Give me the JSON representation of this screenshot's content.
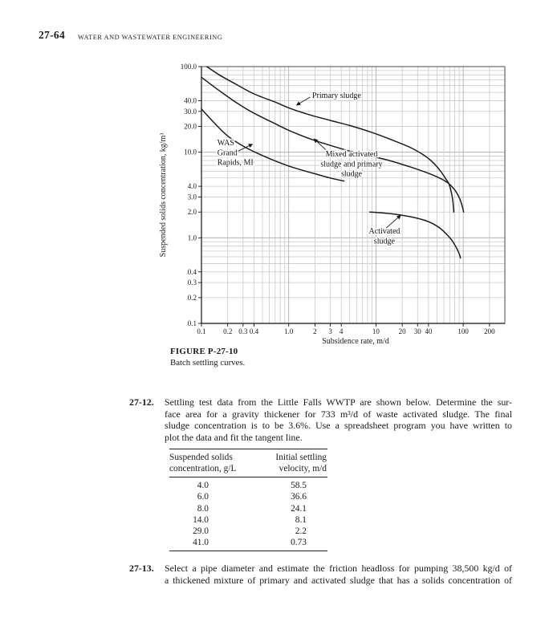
{
  "page": {
    "number": "27-64",
    "running_head": "WATER AND WASTEWATER ENGINEERING"
  },
  "figure": {
    "caption_label": "FIGURE P-27-10",
    "caption_text": "Batch settling curves."
  },
  "chart_data": {
    "type": "line",
    "title": "",
    "xlabel": "Subsidence rate, m/d",
    "ylabel": "Suspended solids concentration, kg/m³",
    "xscale": "log",
    "yscale": "log",
    "xlim": [
      0.1,
      300
    ],
    "ylim": [
      0.1,
      100
    ],
    "grid": "all log-minor gridlines, light gray",
    "legend": "none (inline curve labels with arrows)",
    "xticks": [
      [
        0.1,
        "0.1"
      ],
      [
        0.2,
        "0.2"
      ],
      [
        0.3,
        "0.3"
      ],
      [
        0.4,
        "0.4"
      ],
      [
        1,
        "1.0"
      ],
      [
        2,
        "2"
      ],
      [
        3,
        "3"
      ],
      [
        4,
        "4"
      ],
      [
        10,
        "10"
      ],
      [
        20,
        "20"
      ],
      [
        30,
        "30"
      ],
      [
        40,
        "40"
      ],
      [
        100,
        "100"
      ],
      [
        200,
        "200"
      ]
    ],
    "yticks": [
      [
        100,
        "100.0"
      ],
      [
        40,
        "40.0"
      ],
      [
        30,
        "30.0"
      ],
      [
        20,
        "20.0"
      ],
      [
        10,
        "10.0"
      ],
      [
        4,
        "4.0"
      ],
      [
        3,
        "3.0"
      ],
      [
        2,
        "2.0"
      ],
      [
        1,
        "1.0"
      ],
      [
        0.4,
        "0.4"
      ],
      [
        0.3,
        "0.3"
      ],
      [
        0.2,
        "0.2"
      ],
      [
        0.1,
        "0.1"
      ]
    ],
    "series": [
      {
        "name": "Primary sludge",
        "points": [
          [
            0.115,
            100
          ],
          [
            0.16,
            80
          ],
          [
            0.25,
            62
          ],
          [
            0.4,
            48
          ],
          [
            0.7,
            38.5
          ],
          [
            1.0,
            33
          ],
          [
            1.7,
            27.5
          ],
          [
            3,
            23.5
          ],
          [
            5,
            20.5
          ],
          [
            9,
            17
          ],
          [
            15,
            14
          ],
          [
            25,
            11.3
          ],
          [
            35,
            9.3
          ],
          [
            45,
            7.6
          ],
          [
            55,
            6.0
          ],
          [
            63,
            4.9
          ],
          [
            69,
            4.2
          ],
          [
            73,
            3.4
          ],
          [
            76,
            2.7
          ],
          [
            78,
            2.0
          ]
        ]
      },
      {
        "name": "Mixed activated sludge and primary sludge",
        "points": [
          [
            0.1,
            75
          ],
          [
            0.15,
            55
          ],
          [
            0.25,
            38
          ],
          [
            0.4,
            28.5
          ],
          [
            0.7,
            21.5
          ],
          [
            1.0,
            18
          ],
          [
            1.8,
            14.2
          ],
          [
            3,
            12
          ],
          [
            5,
            10.3
          ],
          [
            8,
            9.2
          ],
          [
            13,
            8.2
          ],
          [
            20,
            7.2
          ],
          [
            30,
            6.3
          ],
          [
            45,
            5.4
          ],
          [
            60,
            4.7
          ],
          [
            71,
            4.15
          ],
          [
            82,
            3.5
          ],
          [
            92,
            2.8
          ],
          [
            99,
            2.2
          ],
          [
            101,
            2.0
          ]
        ]
      },
      {
        "name": "WAS Grand Rapids, MI",
        "points": [
          [
            0.1,
            32
          ],
          [
            0.14,
            22
          ],
          [
            0.2,
            15.5
          ],
          [
            0.3,
            11.8
          ],
          [
            0.45,
            9.6
          ],
          [
            0.7,
            7.9
          ],
          [
            1.0,
            6.9
          ],
          [
            1.4,
            6.2
          ],
          [
            2.0,
            5.6
          ],
          [
            3.0,
            5.0
          ],
          [
            4.3,
            4.6
          ]
        ]
      },
      {
        "name": "Activated sludge",
        "points": [
          [
            8.5,
            2.0
          ],
          [
            12,
            1.95
          ],
          [
            17,
            1.88
          ],
          [
            25,
            1.76
          ],
          [
            35,
            1.62
          ],
          [
            45,
            1.46
          ],
          [
            55,
            1.28
          ],
          [
            65,
            1.09
          ],
          [
            75,
            0.92
          ],
          [
            85,
            0.74
          ],
          [
            91,
            0.63
          ],
          [
            93,
            0.58
          ]
        ]
      }
    ],
    "annotations": [
      {
        "lines": [
          "Primary sludge"
        ],
        "x": 1.86,
        "y": 43,
        "align": "start",
        "arrow": {
          "x1": 1.76,
          "y1": 44,
          "x2": 1.23,
          "y2": 35.5
        }
      },
      {
        "lines": [
          "WAS",
          "Grand",
          "Rapids, MI"
        ],
        "x": 0.152,
        "y": 12.0,
        "align": "start",
        "arrow": {
          "x1": 0.263,
          "y1": 10.3,
          "x2": 0.384,
          "y2": 12.4
        }
      },
      {
        "lines": [
          "Mixed activated",
          "sludge and primary",
          "sludge"
        ],
        "x": 5.25,
        "y": 8.9,
        "align": "middle",
        "arrow": {
          "x1": 2.92,
          "y1": 9.8,
          "x2": 1.95,
          "y2": 14.3
        }
      },
      {
        "lines": [
          "Activated",
          "sludge"
        ],
        "x": 12.5,
        "y": 1.12,
        "align": "middle",
        "arrow": {
          "x1": 13.1,
          "y1": 1.3,
          "x2": 19.2,
          "y2": 1.83
        }
      }
    ]
  },
  "problems": [
    {
      "number": "27-12.",
      "lines": [
        "Settling test data from the Little Falls WWTP are shown below. Determine the sur-",
        "face area for a gravity thickener for 733 m³/d of waste activated sludge. The final",
        "sludge concentration is to be 3.6%. Use a spreadsheet program you have written to",
        "plot the data and fit the tangent line."
      ]
    },
    {
      "number": "27-13.",
      "lines": [
        "Select a pipe diameter and estimate the friction headloss for pumping 38,500 kg/d of",
        "a thickened mixture of primary and activated sludge that has a solids concentration of"
      ]
    }
  ],
  "settling_table": {
    "col1_header": [
      "Suspended solids",
      "concentration, g/L"
    ],
    "col2_header": [
      "Initial settling",
      "velocity, m/d"
    ],
    "rows": [
      [
        "4.0",
        "58.5"
      ],
      [
        "6.0",
        "36.6"
      ],
      [
        "8.0",
        "24.1"
      ],
      [
        "14.0",
        "8.1"
      ],
      [
        "29.0",
        "2.2"
      ],
      [
        "41.0",
        "0.73"
      ]
    ]
  }
}
